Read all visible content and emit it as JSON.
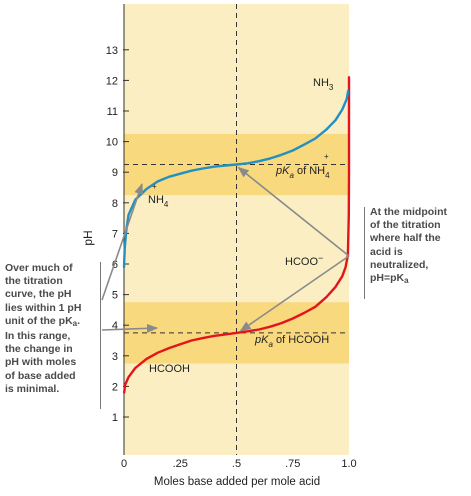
{
  "chart_data": {
    "type": "line",
    "title": "",
    "xlabel": "Moles base added per mole acid",
    "ylabel": "pH",
    "xlim": [
      0,
      1.0
    ],
    "ylim": [
      0.5,
      13.5
    ],
    "x_ticks": [
      0,
      0.25,
      0.5,
      0.75,
      1.0
    ],
    "x_tick_labels": [
      "0",
      ".25",
      ".5",
      ".75",
      "1.0"
    ],
    "y_ticks": [
      1,
      2,
      3,
      4,
      5,
      6,
      7,
      8,
      9,
      10,
      11,
      12,
      13
    ],
    "y_tick_labels": [
      "1",
      "2",
      "3",
      "4",
      "5",
      "6",
      "7",
      "8",
      "9",
      "10",
      "11",
      "12",
      "13"
    ],
    "grid": false,
    "colors": {
      "bands": "#fbeec2",
      "pka_bands": "#f8d97d",
      "formate_curve": "#e3141c",
      "ammonium_curve": "#2290c3",
      "dashed": "#333333",
      "arrows": "#8a8a8a"
    },
    "pka_values": {
      "formate": 3.75,
      "ammonium": 9.25
    },
    "series": [
      {
        "name": "HCOOH",
        "color": "#e3141c",
        "points": [
          [
            0.001,
            1.8
          ],
          [
            0.005,
            2.05
          ],
          [
            0.02,
            2.3
          ],
          [
            0.05,
            2.6
          ],
          [
            0.1,
            2.9
          ],
          [
            0.15,
            3.1
          ],
          [
            0.2,
            3.25
          ],
          [
            0.25,
            3.38
          ],
          [
            0.3,
            3.5
          ],
          [
            0.35,
            3.58
          ],
          [
            0.4,
            3.65
          ],
          [
            0.45,
            3.7
          ],
          [
            0.5,
            3.75
          ],
          [
            0.55,
            3.8
          ],
          [
            0.6,
            3.86
          ],
          [
            0.65,
            3.95
          ],
          [
            0.7,
            4.07
          ],
          [
            0.75,
            4.22
          ],
          [
            0.8,
            4.4
          ],
          [
            0.85,
            4.6
          ],
          [
            0.9,
            4.92
          ],
          [
            0.94,
            5.25
          ],
          [
            0.97,
            5.6
          ],
          [
            0.985,
            5.9
          ],
          [
            0.995,
            6.3
          ],
          [
            0.999,
            7.6
          ],
          [
            1.0,
            9.0
          ],
          [
            1.0,
            10.5
          ],
          [
            1.0,
            12.1
          ]
        ]
      },
      {
        "name": "NH4",
        "color": "#2290c3",
        "points": [
          [
            0.0,
            5.9
          ],
          [
            0.003,
            6.5
          ],
          [
            0.01,
            7.1
          ],
          [
            0.02,
            7.6
          ],
          [
            0.05,
            8.1
          ],
          [
            0.1,
            8.45
          ],
          [
            0.15,
            8.7
          ],
          [
            0.2,
            8.85
          ],
          [
            0.25,
            8.95
          ],
          [
            0.3,
            9.05
          ],
          [
            0.35,
            9.12
          ],
          [
            0.4,
            9.18
          ],
          [
            0.45,
            9.22
          ],
          [
            0.5,
            9.25
          ],
          [
            0.55,
            9.29
          ],
          [
            0.6,
            9.36
          ],
          [
            0.65,
            9.45
          ],
          [
            0.7,
            9.57
          ],
          [
            0.75,
            9.71
          ],
          [
            0.8,
            9.9
          ],
          [
            0.85,
            10.1
          ],
          [
            0.9,
            10.4
          ],
          [
            0.94,
            10.7
          ],
          [
            0.97,
            11.05
          ],
          [
            0.99,
            11.4
          ],
          [
            0.996,
            11.65
          ]
        ]
      }
    ],
    "labels": {
      "nh3": "NH",
      "nh3_sub": "3",
      "pka_nh4": "pK",
      "pka_nh4_sub": "a",
      "pka_nh4_of": " of NH",
      "pka_nh4_plus": "+",
      "pka_nh4_sub2": "4",
      "nh4": "NH",
      "nh4_plus": "+",
      "nh4_sub": "4",
      "hcoo": "HCOO",
      "hcoo_minus": "−",
      "pka_hcooh": "pK",
      "pka_hcooh_sub": "a",
      "pka_hcooh_of": " of HCOOH",
      "hcooh": "HCOOH"
    },
    "annotations": {
      "right_lines": [
        "At the midpoint",
        "of the titration",
        "where half the",
        "acid is",
        "neutralized,",
        "pH=pK"
      ],
      "right_sub": "a",
      "left_lines": [
        "Over much of",
        "the titration",
        "curve, the pH",
        "lies within 1 pH",
        "unit of the pK",
        "In this range,",
        "the change in",
        "pH with moles",
        "of base added",
        "is minimal."
      ],
      "left_sub": "a",
      "left_dot": "."
    }
  }
}
